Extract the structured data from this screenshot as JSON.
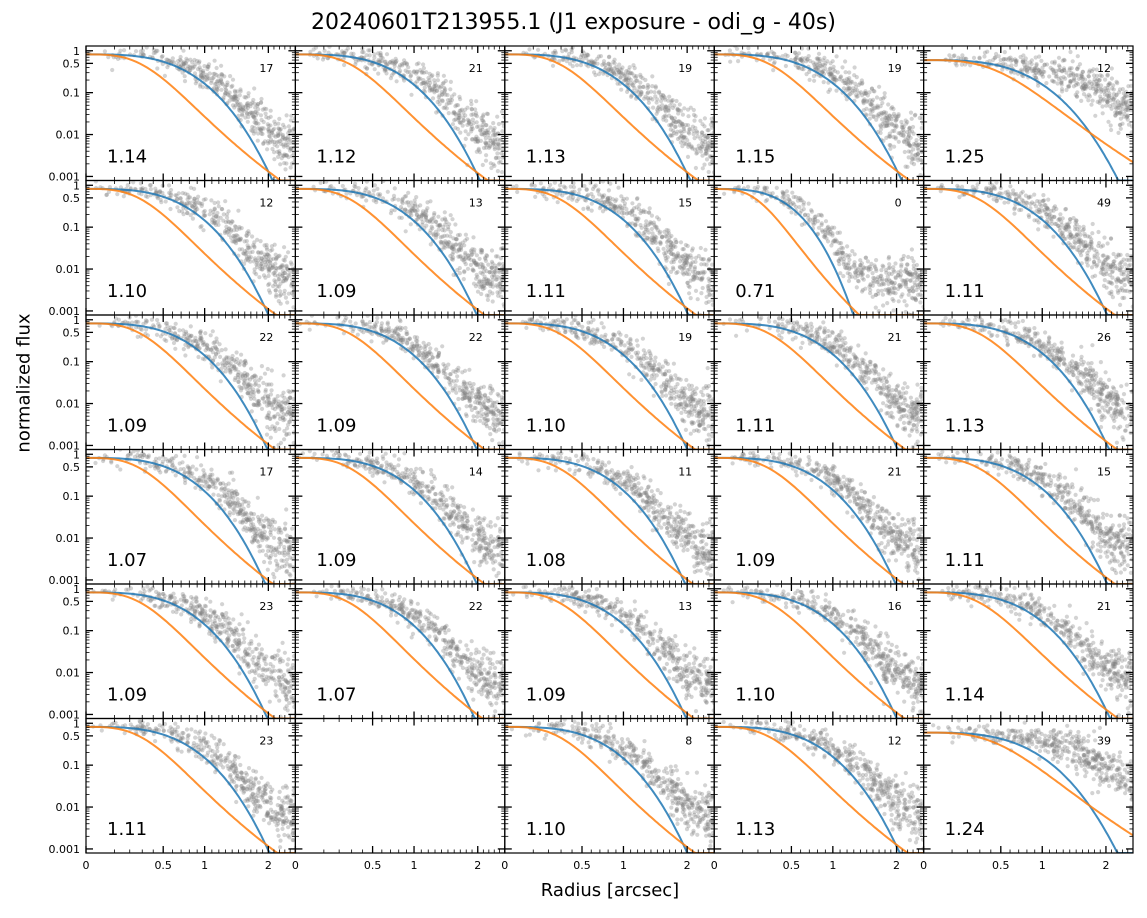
{
  "figure": {
    "title": "20240601T213955.1 (J1 exposure - odi_g - 40s)",
    "xlabel": "Radius [arcsec]",
    "ylabel": "normalized flux"
  },
  "colors": {
    "points": "#808080",
    "fit_blue": "#1f77b4",
    "fit_orange": "#ff7f0e"
  },
  "chart_data": {
    "type": "scatter",
    "layout": {
      "rows": 6,
      "cols": 5
    },
    "x_scale": "radius-squared-like (nonlinear)",
    "y_scale": "log",
    "xlim": [
      0,
      2.5
    ],
    "ylim": [
      0.0008,
      1.3
    ],
    "x_ticks": [
      "0",
      "0.5",
      "1",
      "2"
    ],
    "x_tick_values": [
      0,
      0.5,
      1,
      2
    ],
    "y_ticks": [
      "1",
      "0.5",
      "0.1",
      "0.01",
      "0.001"
    ],
    "y_tick_values": [
      1,
      0.5,
      0.1,
      0.01,
      0.001
    ],
    "series": [
      {
        "name": "",
        "kind": "scatter",
        "color": "#808080"
      },
      {
        "name": "",
        "kind": "line",
        "color": "#1f77b4"
      },
      {
        "name": "",
        "kind": "line",
        "color": "#ff7f0e"
      }
    ],
    "panels": [
      {
        "fwhm": "1.14",
        "count": "17"
      },
      {
        "fwhm": "1.12",
        "count": "21"
      },
      {
        "fwhm": "1.13",
        "count": "19"
      },
      {
        "fwhm": "1.15",
        "count": "19"
      },
      {
        "fwhm": "1.25",
        "count": "12"
      },
      {
        "fwhm": "1.10",
        "count": "12"
      },
      {
        "fwhm": "1.09",
        "count": "13"
      },
      {
        "fwhm": "1.11",
        "count": "15"
      },
      {
        "fwhm": "0.71",
        "count": "0"
      },
      {
        "fwhm": "1.11",
        "count": "49"
      },
      {
        "fwhm": "1.09",
        "count": "22"
      },
      {
        "fwhm": "1.09",
        "count": "22"
      },
      {
        "fwhm": "1.10",
        "count": "19"
      },
      {
        "fwhm": "1.11",
        "count": "21"
      },
      {
        "fwhm": "1.13",
        "count": "26"
      },
      {
        "fwhm": "1.07",
        "count": "17"
      },
      {
        "fwhm": "1.09",
        "count": "14"
      },
      {
        "fwhm": "1.08",
        "count": "11"
      },
      {
        "fwhm": "1.09",
        "count": "21"
      },
      {
        "fwhm": "1.11",
        "count": "15"
      },
      {
        "fwhm": "1.09",
        "count": "23"
      },
      {
        "fwhm": "1.07",
        "count": "22"
      },
      {
        "fwhm": "1.09",
        "count": "13"
      },
      {
        "fwhm": "1.10",
        "count": "16"
      },
      {
        "fwhm": "1.14",
        "count": "21"
      },
      {
        "fwhm": "1.11",
        "count": "23"
      },
      {
        "fwhm": "",
        "count": "",
        "empty": true
      },
      {
        "fwhm": "1.10",
        "count": "8"
      },
      {
        "fwhm": "1.13",
        "count": "12"
      },
      {
        "fwhm": "1.24",
        "count": "39"
      }
    ]
  }
}
